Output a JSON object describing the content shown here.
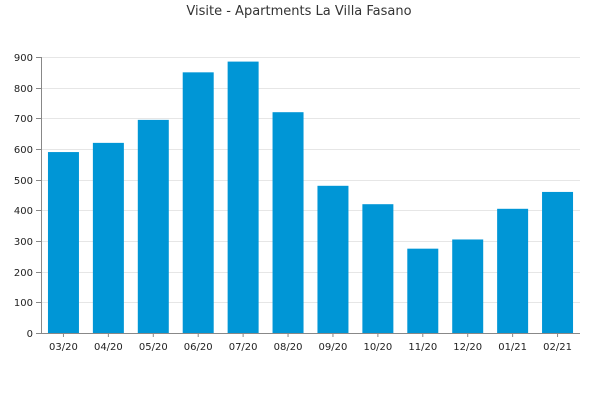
{
  "chart_data": {
    "type": "bar",
    "title": "Visite - Apartments La Villa Fasano",
    "xlabel": "",
    "ylabel": "",
    "categories": [
      "03/20",
      "04/20",
      "05/20",
      "06/20",
      "07/20",
      "08/20",
      "09/20",
      "10/20",
      "11/20",
      "12/20",
      "01/21",
      "02/21"
    ],
    "values": [
      590,
      620,
      695,
      850,
      885,
      720,
      480,
      420,
      275,
      305,
      405,
      460
    ],
    "ylim": [
      0,
      900
    ],
    "yticks": [
      0,
      100,
      200,
      300,
      400,
      500,
      600,
      700,
      800,
      900
    ],
    "grid": true,
    "legend": "none",
    "colors": {
      "bar": "#0096d6",
      "grid": "#e6e6e6",
      "axis": "#888888"
    }
  }
}
